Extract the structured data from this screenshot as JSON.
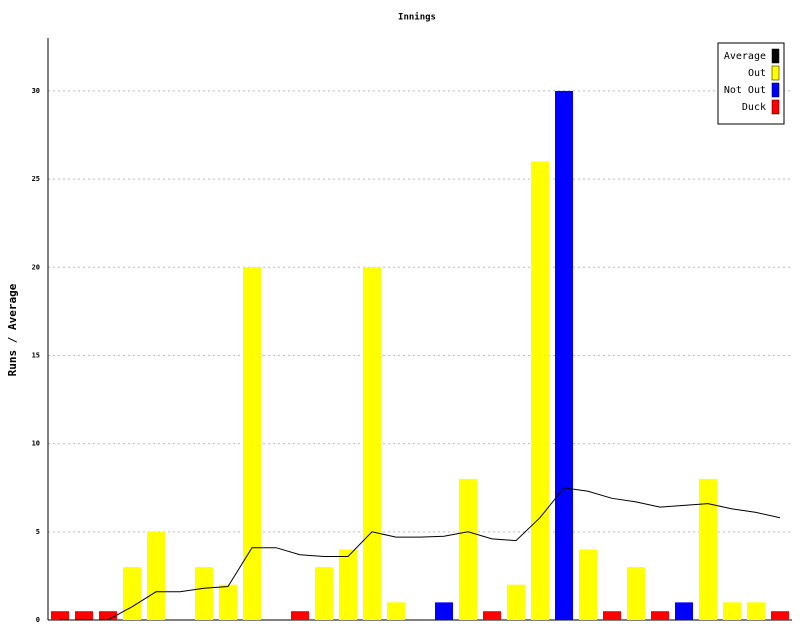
{
  "chart_data": {
    "type": "bar",
    "title": "Innings",
    "y_label": "Runs / Average",
    "categories": [
      null,
      null,
      null,
      null,
      null,
      null,
      null,
      null,
      null,
      null,
      null,
      null,
      null,
      null,
      null,
      null,
      null,
      null,
      null,
      null,
      null,
      null,
      null,
      null,
      null,
      null,
      null,
      null,
      null,
      null,
      null
    ],
    "ylim": [
      0,
      33
    ],
    "yticks": [
      0,
      5,
      10,
      15,
      20,
      25,
      30
    ],
    "grid": true,
    "legend": "top-right",
    "series": [
      {
        "name": "Average",
        "color": "#000000",
        "kind": "line",
        "values": [
          0,
          0,
          0,
          0.75,
          1.6,
          1.6,
          1.8,
          1.9,
          4.1,
          4.1,
          3.7,
          3.6,
          3.6,
          5.0,
          4.7,
          4.7,
          4.75,
          5.0,
          4.6,
          4.5,
          5.8,
          7.5,
          7.3,
          6.9,
          6.7,
          6.4,
          6.5,
          6.6,
          6.3,
          6.1,
          5.8
        ]
      },
      {
        "name": "Out",
        "color": "#ffff00",
        "values": [
          null,
          null,
          null,
          3,
          5,
          null,
          3,
          2,
          20,
          null,
          null,
          3,
          4,
          20,
          1,
          null,
          null,
          8,
          null,
          2,
          26,
          null,
          4,
          null,
          3,
          null,
          null,
          8,
          1,
          1,
          null
        ]
      },
      {
        "name": "Not Out",
        "color": "#0000ff",
        "values": [
          null,
          null,
          null,
          null,
          null,
          null,
          null,
          null,
          null,
          null,
          null,
          null,
          null,
          null,
          null,
          null,
          1,
          null,
          null,
          null,
          null,
          30,
          null,
          null,
          null,
          null,
          1,
          null,
          null,
          null,
          null
        ]
      },
      {
        "name": "Duck",
        "color": "#ff0000",
        "values": [
          0.5,
          0.5,
          0.5,
          null,
          null,
          null,
          null,
          null,
          null,
          null,
          0.5,
          null,
          null,
          null,
          null,
          null,
          null,
          null,
          0.5,
          null,
          null,
          null,
          null,
          0.5,
          null,
          0.5,
          null,
          null,
          null,
          null,
          0.5
        ]
      }
    ]
  }
}
